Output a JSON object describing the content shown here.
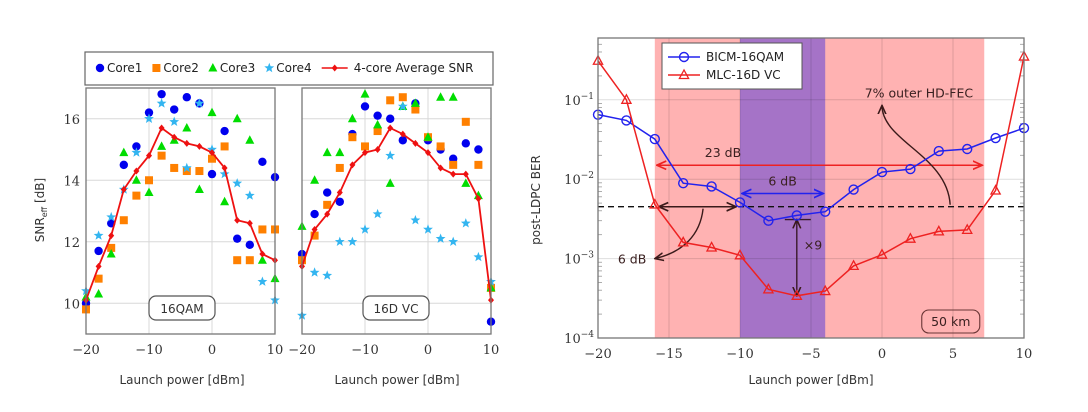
{
  "chart_data": [
    {
      "type": "scatter",
      "panel": "left",
      "title": "",
      "xlabel": "Launch power [dBm]",
      "ylabel": "SNR_eff [dB]",
      "ylabel_main": "SNR",
      "ylabel_sub": "eff",
      "ylabel_unit": " [dB]",
      "annotation": "16QAM",
      "xlim": [
        -20,
        10
      ],
      "ylim": [
        9.0,
        17.0
      ],
      "xticks": [
        -20,
        -10,
        0,
        10
      ],
      "xtick_labels": [
        "−20",
        "−10",
        "0",
        "10"
      ],
      "yticks": [
        10,
        12,
        14,
        16
      ],
      "ytick_labels": [
        "10",
        "12",
        "14",
        "16"
      ],
      "grid": true,
      "x": [
        -20,
        -18,
        -16,
        -14,
        -12,
        -10,
        -8,
        -6,
        -4,
        -2,
        0,
        2,
        4,
        6,
        8,
        10
      ],
      "series": [
        {
          "name": "Core1",
          "marker": "circle",
          "color": "#0000ee",
          "values": [
            10.0,
            11.7,
            12.6,
            14.5,
            15.1,
            16.2,
            16.8,
            16.3,
            16.7,
            16.5,
            14.2,
            15.6,
            12.1,
            11.9,
            14.6,
            14.1
          ]
        },
        {
          "name": "Core2",
          "marker": "square",
          "color": "#ff8000",
          "values": [
            9.8,
            10.8,
            11.8,
            12.7,
            13.5,
            14.0,
            14.8,
            14.4,
            14.3,
            14.3,
            14.7,
            15.1,
            11.4,
            11.4,
            12.4,
            12.4
          ]
        },
        {
          "name": "Core3",
          "marker": "triangle",
          "color": "#00dd00",
          "values": [
            10.2,
            10.3,
            11.6,
            14.9,
            14.0,
            13.6,
            15.1,
            15.3,
            15.7,
            13.7,
            16.2,
            13.3,
            16.0,
            15.3,
            11.4,
            10.8
          ]
        },
        {
          "name": "Core4",
          "marker": "star",
          "color": "#33b5f0",
          "values": [
            10.4,
            12.2,
            12.8,
            13.7,
            14.9,
            16.0,
            16.5,
            15.9,
            14.4,
            16.5,
            15.0,
            14.2,
            13.9,
            13.5,
            10.7,
            10.1
          ]
        },
        {
          "name": "4-core Average SNR",
          "marker": "diamond",
          "line": true,
          "color": "#ee1111",
          "values": [
            10.1,
            11.2,
            12.2,
            13.7,
            14.3,
            14.8,
            15.7,
            15.4,
            15.2,
            15.1,
            14.9,
            14.4,
            12.7,
            12.6,
            11.6,
            11.4
          ]
        }
      ]
    },
    {
      "type": "scatter",
      "panel": "middle",
      "title": "",
      "xlabel": "Launch power [dBm]",
      "ylabel": "",
      "annotation": "16D VC",
      "xlim": [
        -20,
        10
      ],
      "ylim": [
        9.0,
        17.0
      ],
      "xticks": [
        -20,
        -10,
        0,
        10
      ],
      "xtick_labels": [
        "−20",
        "−10",
        "0",
        "10"
      ],
      "yticks": [
        10,
        12,
        14,
        16
      ],
      "ytick_labels": [
        "10",
        "12",
        "14",
        "16"
      ],
      "grid": true,
      "x": [
        -20,
        -18,
        -16,
        -14,
        -12,
        -10,
        -8,
        -6,
        -4,
        -2,
        0,
        2,
        4,
        6,
        8,
        10
      ],
      "series": [
        {
          "name": "Core1",
          "marker": "circle",
          "color": "#0000ee",
          "values": [
            11.6,
            12.9,
            13.6,
            13.3,
            15.5,
            16.4,
            16.1,
            16.0,
            15.3,
            16.5,
            15.3,
            15.0,
            14.7,
            15.2,
            15.0,
            9.4
          ]
        },
        {
          "name": "Core2",
          "marker": "square",
          "color": "#ff8000",
          "values": [
            11.4,
            12.2,
            13.2,
            14.4,
            15.4,
            15.1,
            15.6,
            16.6,
            16.7,
            16.3,
            15.4,
            15.1,
            14.5,
            15.9,
            14.5,
            10.5
          ]
        },
        {
          "name": "Core3",
          "marker": "triangle",
          "color": "#00dd00",
          "values": [
            12.5,
            14.0,
            14.9,
            14.9,
            16.0,
            16.8,
            15.8,
            13.9,
            16.4,
            16.5,
            15.4,
            16.7,
            16.7,
            13.9,
            13.5,
            10.5
          ]
        },
        {
          "name": "Core4",
          "marker": "star",
          "color": "#33b5f0",
          "values": [
            9.6,
            11.0,
            10.9,
            12.0,
            12.0,
            12.4,
            12.9,
            14.8,
            16.4,
            12.7,
            12.4,
            12.1,
            12.0,
            12.6,
            11.5,
            10.7
          ]
        },
        {
          "name": "4-core Average SNR",
          "marker": "diamond",
          "line": true,
          "color": "#ee1111",
          "values": [
            11.2,
            12.4,
            12.9,
            13.6,
            14.5,
            14.9,
            15.0,
            15.7,
            15.5,
            15.2,
            14.9,
            14.4,
            14.2,
            14.2,
            13.4,
            10.1
          ]
        }
      ]
    },
    {
      "type": "line",
      "panel": "right",
      "title": "",
      "xlabel": "Launch power [dBm]",
      "ylabel": "post-LDPC BER",
      "yscale": "log",
      "xlim": [
        -20,
        10
      ],
      "ylim": [
        0.0001,
        0.6
      ],
      "xticks": [
        -20,
        -15,
        -10,
        -5,
        0,
        5,
        10
      ],
      "xtick_labels": [
        "−20",
        "−15",
        "−10",
        "−5",
        "0",
        "5",
        "10"
      ],
      "yticks": [
        0.0001,
        0.001,
        0.01,
        0.1
      ],
      "ytick_labels": [
        {
          "base": "10",
          "exp": "−4"
        },
        {
          "base": "10",
          "exp": "−3"
        },
        {
          "base": "10",
          "exp": "−2"
        },
        {
          "base": "10",
          "exp": "−1"
        }
      ],
      "grid": true,
      "legend_position": "top-left",
      "x": [
        -20,
        -18,
        -16,
        -14,
        -12,
        -10,
        -8,
        -6,
        -4,
        -2,
        0,
        2,
        4,
        6,
        8,
        10
      ],
      "series": [
        {
          "name": "BICM-16QAM",
          "marker": "circle-open",
          "color": "#2222ee",
          "values": [
            0.065,
            0.055,
            0.032,
            0.0089,
            0.0081,
            0.0051,
            0.003,
            0.0035,
            0.0039,
            0.0074,
            0.0123,
            0.0134,
            0.0226,
            0.024,
            0.033,
            0.044
          ]
        },
        {
          "name": "MLC-16D VC",
          "marker": "triangle-open",
          "color": "#ee2222",
          "values": [
            0.31,
            0.1,
            0.0048,
            0.0016,
            0.00138,
            0.0011,
            0.00041,
            0.00034,
            0.00039,
            0.00081,
            0.00112,
            0.00178,
            0.0022,
            0.0023,
            0.0072,
            0.35
          ]
        }
      ],
      "threshold": {
        "value": 0.0045,
        "label": "7% outer HD-FEC",
        "style": "dashed",
        "color": "#111111"
      },
      "shaded_regions": [
        {
          "name": "MLC-16D VC window",
          "x_range": [
            -16.0,
            7.2
          ],
          "color": "#ffaaaa",
          "opacity": 0.9
        },
        {
          "name": "BICM-16QAM window",
          "x_range": [
            -10.0,
            -4.0
          ],
          "color": "#a070c8",
          "opacity": 0.95
        }
      ],
      "annotations": [
        {
          "text": "23 dB",
          "type": "double-arrow",
          "x_range": [
            -16.0,
            7.2
          ],
          "y": 0.015,
          "color": "#ee2222"
        },
        {
          "text": "6 dB",
          "type": "double-arrow",
          "x_range": [
            -10.0,
            -4.0
          ],
          "y": 0.0066,
          "color": "#2222ee"
        },
        {
          "text": "6 dB",
          "type": "double-arrow-callout",
          "x_range": [
            -16.0,
            -10.0
          ],
          "y": 0.0045,
          "color": "#3a1a1a"
        },
        {
          "text": "×9",
          "type": "vertical-double-arrow",
          "x": -6,
          "y_range": [
            0.00034,
            0.0031
          ],
          "color": "#3a1a2a"
        },
        {
          "text": "7% outer HD-FEC",
          "type": "curved-arrow",
          "color": "#3a1a1a"
        },
        {
          "text": "50 km",
          "type": "boxed-label"
        }
      ]
    }
  ],
  "legend_top": {
    "entries": [
      {
        "label": "Core1",
        "marker": "circle",
        "color": "#0000ee"
      },
      {
        "label": "Core2",
        "marker": "square",
        "color": "#ff8000"
      },
      {
        "label": "Core3",
        "marker": "triangle",
        "color": "#00dd00"
      },
      {
        "label": "Core4",
        "marker": "star",
        "color": "#33b5f0"
      },
      {
        "label": "4-core Average SNR",
        "marker": "line-diamond",
        "color": "#ee1111"
      }
    ]
  }
}
